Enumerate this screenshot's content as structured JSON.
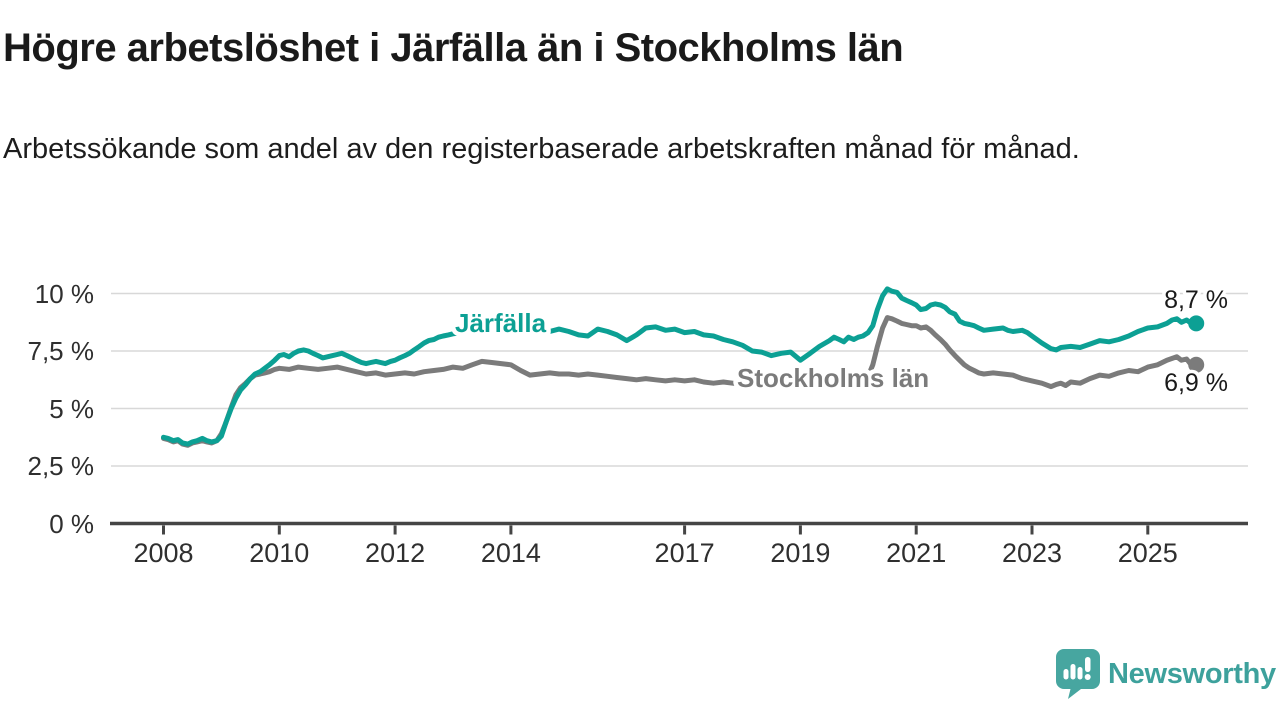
{
  "chart_data": {
    "type": "line",
    "title": "Högre arbetslöshet i Järfälla än i Stockholms län",
    "subtitle": "Arbetssökande som andel av den registerbaserade arbetskraften månad för månad.",
    "legend_position": "inline-labels-on-lines",
    "grid": true,
    "x_axis": {
      "tick_years": [
        2008,
        2010,
        2012,
        2014,
        2017,
        2019,
        2021,
        2023,
        2025
      ],
      "range": [
        2008,
        2026.75
      ]
    },
    "y_axis": {
      "range": [
        0,
        10.5
      ],
      "ticks": [
        {
          "value": 10,
          "label": "10 %"
        },
        {
          "value": 7.5,
          "label": "7,5 %"
        },
        {
          "value": 5,
          "label": "5 %"
        },
        {
          "value": 2.5,
          "label": "2,5 %"
        },
        {
          "value": 0,
          "label": "0 %"
        }
      ]
    },
    "series": [
      {
        "name": "Järfälla",
        "color": "#0ca094",
        "end_value": 8.7,
        "end_label": "8,7 %",
        "points": [
          [
            2008.0,
            3.75
          ],
          [
            2008.08,
            3.7
          ],
          [
            2008.17,
            3.6
          ],
          [
            2008.25,
            3.65
          ],
          [
            2008.33,
            3.5
          ],
          [
            2008.42,
            3.45
          ],
          [
            2008.5,
            3.55
          ],
          [
            2008.58,
            3.6
          ],
          [
            2008.67,
            3.7
          ],
          [
            2008.75,
            3.6
          ],
          [
            2008.83,
            3.55
          ],
          [
            2008.92,
            3.6
          ],
          [
            2009.0,
            3.8
          ],
          [
            2009.08,
            4.4
          ],
          [
            2009.17,
            5.0
          ],
          [
            2009.25,
            5.45
          ],
          [
            2009.33,
            5.8
          ],
          [
            2009.42,
            6.05
          ],
          [
            2009.5,
            6.3
          ],
          [
            2009.58,
            6.5
          ],
          [
            2009.67,
            6.6
          ],
          [
            2009.75,
            6.75
          ],
          [
            2009.83,
            6.9
          ],
          [
            2009.92,
            7.1
          ],
          [
            2010.0,
            7.3
          ],
          [
            2010.08,
            7.35
          ],
          [
            2010.17,
            7.25
          ],
          [
            2010.25,
            7.4
          ],
          [
            2010.33,
            7.5
          ],
          [
            2010.42,
            7.55
          ],
          [
            2010.5,
            7.5
          ],
          [
            2010.58,
            7.4
          ],
          [
            2010.67,
            7.3
          ],
          [
            2010.75,
            7.2
          ],
          [
            2010.83,
            7.25
          ],
          [
            2010.92,
            7.3
          ],
          [
            2011.0,
            7.35
          ],
          [
            2011.08,
            7.4
          ],
          [
            2011.17,
            7.3
          ],
          [
            2011.25,
            7.2
          ],
          [
            2011.33,
            7.1
          ],
          [
            2011.42,
            7.0
          ],
          [
            2011.5,
            6.95
          ],
          [
            2011.58,
            7.0
          ],
          [
            2011.67,
            7.05
          ],
          [
            2011.75,
            7.0
          ],
          [
            2011.83,
            6.95
          ],
          [
            2011.92,
            7.05
          ],
          [
            2012.0,
            7.1
          ],
          [
            2012.08,
            7.2
          ],
          [
            2012.17,
            7.3
          ],
          [
            2012.25,
            7.4
          ],
          [
            2012.33,
            7.55
          ],
          [
            2012.42,
            7.7
          ],
          [
            2012.5,
            7.85
          ],
          [
            2012.58,
            7.95
          ],
          [
            2012.67,
            8.0
          ],
          [
            2012.75,
            8.1
          ],
          [
            2012.83,
            8.15
          ],
          [
            2012.92,
            8.2
          ],
          [
            2013.0,
            8.25
          ],
          [
            2013.17,
            8.3
          ],
          [
            2013.33,
            8.45
          ],
          [
            2013.5,
            8.55
          ],
          [
            2013.67,
            8.5
          ],
          [
            2013.83,
            8.55
          ],
          [
            2014.0,
            8.6
          ],
          [
            2014.17,
            8.5
          ],
          [
            2014.33,
            8.4
          ],
          [
            2014.5,
            8.45
          ],
          [
            2014.67,
            8.35
          ],
          [
            2014.83,
            8.45
          ],
          [
            2015.0,
            8.35
          ],
          [
            2015.17,
            8.2
          ],
          [
            2015.33,
            8.15
          ],
          [
            2015.5,
            8.45
          ],
          [
            2015.67,
            8.35
          ],
          [
            2015.83,
            8.2
          ],
          [
            2016.0,
            7.95
          ],
          [
            2016.17,
            8.2
          ],
          [
            2016.33,
            8.5
          ],
          [
            2016.5,
            8.55
          ],
          [
            2016.67,
            8.4
          ],
          [
            2016.83,
            8.45
          ],
          [
            2017.0,
            8.3
          ],
          [
            2017.17,
            8.35
          ],
          [
            2017.33,
            8.2
          ],
          [
            2017.5,
            8.15
          ],
          [
            2017.67,
            8.0
          ],
          [
            2017.83,
            7.9
          ],
          [
            2018.0,
            7.75
          ],
          [
            2018.17,
            7.5
          ],
          [
            2018.33,
            7.45
          ],
          [
            2018.5,
            7.3
          ],
          [
            2018.67,
            7.4
          ],
          [
            2018.83,
            7.45
          ],
          [
            2019.0,
            7.1
          ],
          [
            2019.17,
            7.4
          ],
          [
            2019.33,
            7.7
          ],
          [
            2019.5,
            7.95
          ],
          [
            2019.58,
            8.1
          ],
          [
            2019.67,
            8.0
          ],
          [
            2019.75,
            7.9
          ],
          [
            2019.83,
            8.1
          ],
          [
            2019.92,
            8.0
          ],
          [
            2020.0,
            8.1
          ],
          [
            2020.08,
            8.15
          ],
          [
            2020.17,
            8.3
          ],
          [
            2020.25,
            8.6
          ],
          [
            2020.33,
            9.3
          ],
          [
            2020.42,
            9.9
          ],
          [
            2020.5,
            10.2
          ],
          [
            2020.58,
            10.1
          ],
          [
            2020.67,
            10.05
          ],
          [
            2020.75,
            9.8
          ],
          [
            2020.83,
            9.7
          ],
          [
            2020.92,
            9.6
          ],
          [
            2021.0,
            9.5
          ],
          [
            2021.08,
            9.3
          ],
          [
            2021.17,
            9.35
          ],
          [
            2021.25,
            9.5
          ],
          [
            2021.33,
            9.55
          ],
          [
            2021.42,
            9.5
          ],
          [
            2021.5,
            9.4
          ],
          [
            2021.58,
            9.2
          ],
          [
            2021.67,
            9.1
          ],
          [
            2021.75,
            8.8
          ],
          [
            2021.83,
            8.7
          ],
          [
            2021.92,
            8.65
          ],
          [
            2022.0,
            8.6
          ],
          [
            2022.08,
            8.5
          ],
          [
            2022.17,
            8.4
          ],
          [
            2022.33,
            8.45
          ],
          [
            2022.5,
            8.5
          ],
          [
            2022.58,
            8.4
          ],
          [
            2022.67,
            8.35
          ],
          [
            2022.83,
            8.4
          ],
          [
            2022.92,
            8.3
          ],
          [
            2023.0,
            8.15
          ],
          [
            2023.17,
            7.85
          ],
          [
            2023.33,
            7.6
          ],
          [
            2023.42,
            7.55
          ],
          [
            2023.5,
            7.65
          ],
          [
            2023.67,
            7.7
          ],
          [
            2023.83,
            7.65
          ],
          [
            2024.0,
            7.8
          ],
          [
            2024.17,
            7.95
          ],
          [
            2024.33,
            7.9
          ],
          [
            2024.5,
            8.0
          ],
          [
            2024.67,
            8.15
          ],
          [
            2024.83,
            8.35
          ],
          [
            2025.0,
            8.5
          ],
          [
            2025.17,
            8.55
          ],
          [
            2025.33,
            8.7
          ],
          [
            2025.42,
            8.85
          ],
          [
            2025.5,
            8.9
          ],
          [
            2025.58,
            8.75
          ],
          [
            2025.67,
            8.85
          ],
          [
            2025.75,
            8.7
          ]
        ]
      },
      {
        "name": "Stockholms län",
        "color": "#7b7b7b",
        "end_value": 6.9,
        "end_label": "6,9 %",
        "points": [
          [
            2008.0,
            3.7
          ],
          [
            2008.08,
            3.65
          ],
          [
            2008.17,
            3.55
          ],
          [
            2008.25,
            3.6
          ],
          [
            2008.33,
            3.45
          ],
          [
            2008.42,
            3.4
          ],
          [
            2008.5,
            3.5
          ],
          [
            2008.58,
            3.55
          ],
          [
            2008.67,
            3.6
          ],
          [
            2008.75,
            3.55
          ],
          [
            2008.83,
            3.5
          ],
          [
            2008.92,
            3.6
          ],
          [
            2009.0,
            3.9
          ],
          [
            2009.08,
            4.4
          ],
          [
            2009.17,
            5.05
          ],
          [
            2009.25,
            5.6
          ],
          [
            2009.33,
            5.9
          ],
          [
            2009.42,
            6.1
          ],
          [
            2009.5,
            6.3
          ],
          [
            2009.58,
            6.45
          ],
          [
            2009.67,
            6.5
          ],
          [
            2009.75,
            6.55
          ],
          [
            2009.83,
            6.6
          ],
          [
            2009.92,
            6.7
          ],
          [
            2010.0,
            6.75
          ],
          [
            2010.17,
            6.7
          ],
          [
            2010.33,
            6.8
          ],
          [
            2010.5,
            6.75
          ],
          [
            2010.67,
            6.7
          ],
          [
            2010.83,
            6.75
          ],
          [
            2011.0,
            6.8
          ],
          [
            2011.17,
            6.7
          ],
          [
            2011.33,
            6.6
          ],
          [
            2011.5,
            6.5
          ],
          [
            2011.67,
            6.55
          ],
          [
            2011.83,
            6.45
          ],
          [
            2012.0,
            6.5
          ],
          [
            2012.17,
            6.55
          ],
          [
            2012.33,
            6.5
          ],
          [
            2012.5,
            6.6
          ],
          [
            2012.67,
            6.65
          ],
          [
            2012.83,
            6.7
          ],
          [
            2013.0,
            6.8
          ],
          [
            2013.17,
            6.75
          ],
          [
            2013.33,
            6.9
          ],
          [
            2013.5,
            7.05
          ],
          [
            2013.67,
            7.0
          ],
          [
            2013.83,
            6.95
          ],
          [
            2014.0,
            6.9
          ],
          [
            2014.17,
            6.65
          ],
          [
            2014.33,
            6.45
          ],
          [
            2014.5,
            6.5
          ],
          [
            2014.67,
            6.55
          ],
          [
            2014.83,
            6.5
          ],
          [
            2015.0,
            6.5
          ],
          [
            2015.17,
            6.45
          ],
          [
            2015.33,
            6.5
          ],
          [
            2015.5,
            6.45
          ],
          [
            2015.67,
            6.4
          ],
          [
            2015.83,
            6.35
          ],
          [
            2016.0,
            6.3
          ],
          [
            2016.17,
            6.25
          ],
          [
            2016.33,
            6.3
          ],
          [
            2016.5,
            6.25
          ],
          [
            2016.67,
            6.2
          ],
          [
            2016.83,
            6.25
          ],
          [
            2017.0,
            6.2
          ],
          [
            2017.17,
            6.25
          ],
          [
            2017.33,
            6.15
          ],
          [
            2017.5,
            6.1
          ],
          [
            2017.67,
            6.15
          ],
          [
            2017.83,
            6.1
          ],
          [
            2018.0,
            6.05
          ],
          [
            2018.25,
            6.0
          ],
          [
            2018.5,
            5.95
          ],
          [
            2018.75,
            6.0
          ],
          [
            2019.0,
            6.0
          ],
          [
            2019.25,
            6.05
          ],
          [
            2019.5,
            6.1
          ],
          [
            2019.75,
            6.15
          ],
          [
            2020.0,
            6.2
          ],
          [
            2020.08,
            6.25
          ],
          [
            2020.17,
            6.4
          ],
          [
            2020.25,
            6.9
          ],
          [
            2020.33,
            7.7
          ],
          [
            2020.42,
            8.5
          ],
          [
            2020.5,
            8.95
          ],
          [
            2020.58,
            8.9
          ],
          [
            2020.67,
            8.8
          ],
          [
            2020.75,
            8.7
          ],
          [
            2020.83,
            8.65
          ],
          [
            2020.92,
            8.6
          ],
          [
            2021.0,
            8.6
          ],
          [
            2021.08,
            8.5
          ],
          [
            2021.17,
            8.55
          ],
          [
            2021.25,
            8.4
          ],
          [
            2021.33,
            8.2
          ],
          [
            2021.42,
            8.0
          ],
          [
            2021.5,
            7.8
          ],
          [
            2021.58,
            7.55
          ],
          [
            2021.67,
            7.3
          ],
          [
            2021.75,
            7.1
          ],
          [
            2021.83,
            6.9
          ],
          [
            2021.92,
            6.75
          ],
          [
            2022.0,
            6.65
          ],
          [
            2022.08,
            6.55
          ],
          [
            2022.17,
            6.5
          ],
          [
            2022.33,
            6.55
          ],
          [
            2022.5,
            6.5
          ],
          [
            2022.67,
            6.45
          ],
          [
            2022.83,
            6.3
          ],
          [
            2023.0,
            6.2
          ],
          [
            2023.17,
            6.1
          ],
          [
            2023.33,
            5.95
          ],
          [
            2023.42,
            6.05
          ],
          [
            2023.5,
            6.1
          ],
          [
            2023.58,
            6.0
          ],
          [
            2023.67,
            6.15
          ],
          [
            2023.83,
            6.1
          ],
          [
            2024.0,
            6.3
          ],
          [
            2024.17,
            6.45
          ],
          [
            2024.33,
            6.4
          ],
          [
            2024.5,
            6.55
          ],
          [
            2024.67,
            6.65
          ],
          [
            2024.83,
            6.6
          ],
          [
            2025.0,
            6.8
          ],
          [
            2025.17,
            6.9
          ],
          [
            2025.33,
            7.1
          ],
          [
            2025.5,
            7.25
          ],
          [
            2025.58,
            7.1
          ],
          [
            2025.67,
            7.15
          ],
          [
            2025.75,
            6.9
          ]
        ]
      }
    ],
    "style": {
      "grid_color": "#d8d8d8",
      "axis_color": "#454545",
      "text_color": "#2f2f2f",
      "value_label_color": "#1a1a1a"
    }
  },
  "branding": {
    "logo_text": "Newsworthy",
    "logo_color": "#3da19c",
    "logo_icon": "speech-bubble-bar-chart-exclamation-icon"
  }
}
